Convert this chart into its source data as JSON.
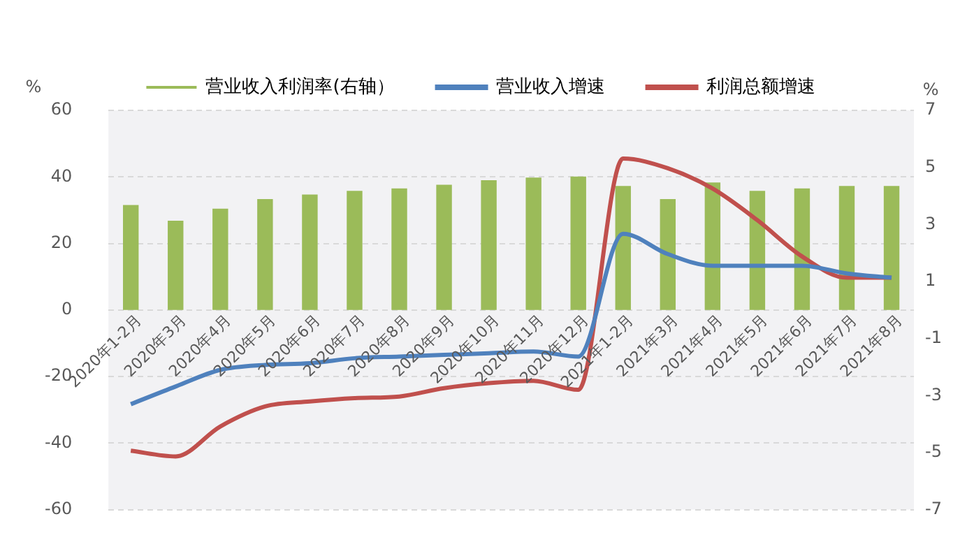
{
  "chart_data": {
    "type": "bar",
    "ylabel": "%",
    "y2label": "%",
    "categories": [
      "2020年1-2月",
      "2020年3月",
      "2020年4月",
      "2020年5月",
      "2020年6月",
      "2020年7月",
      "2020年8月",
      "2020年9月",
      "2020年10月",
      "2020年11月",
      "2020年12月",
      "2021年1-2月",
      "2021年3月",
      "2021年4月",
      "2021年5月",
      "2021年6月",
      "2021年7月",
      "2021年8月"
    ],
    "series": [
      {
        "name": "营业收入利润率(右轴）",
        "axis": "y2",
        "color": "#9bbb59",
        "values": [
          3.68,
          3.13,
          3.55,
          3.89,
          4.05,
          4.18,
          4.26,
          4.39,
          4.55,
          4.64,
          4.68,
          4.35,
          3.89,
          4.47,
          4.18,
          4.26,
          4.35,
          4.35
        ]
      },
      {
        "name": "营业收入增速",
        "type": "line",
        "color": "#4f81bd",
        "values": [
          -28.3,
          -23,
          -18,
          -16.5,
          -16,
          -14.5,
          -14,
          -13.5,
          -13,
          -12.5,
          -14,
          22.9,
          16.8,
          13.3,
          13.3,
          13.3,
          11,
          9.7
        ]
      },
      {
        "name": "利润总额增速",
        "type": "line",
        "color": "#c0504d",
        "values": [
          -42.3,
          -44,
          -35,
          -29,
          -27.5,
          -26.5,
          -26,
          -23.5,
          -22,
          -21.3,
          -24,
          45.5,
          42.6,
          36.5,
          27,
          16.1,
          9.7,
          9.7
        ]
      }
    ],
    "ylim": [
      -60,
      60
    ],
    "yticks": [
      -60,
      -40,
      -20,
      0,
      20,
      40,
      60
    ],
    "y2lim": [
      -7,
      7
    ],
    "y2ticks": [
      -7,
      -5,
      -3,
      -1,
      1,
      3,
      5,
      7
    ],
    "grid": "y",
    "legend": "top",
    "marker": "none",
    "line_style": "solid"
  }
}
